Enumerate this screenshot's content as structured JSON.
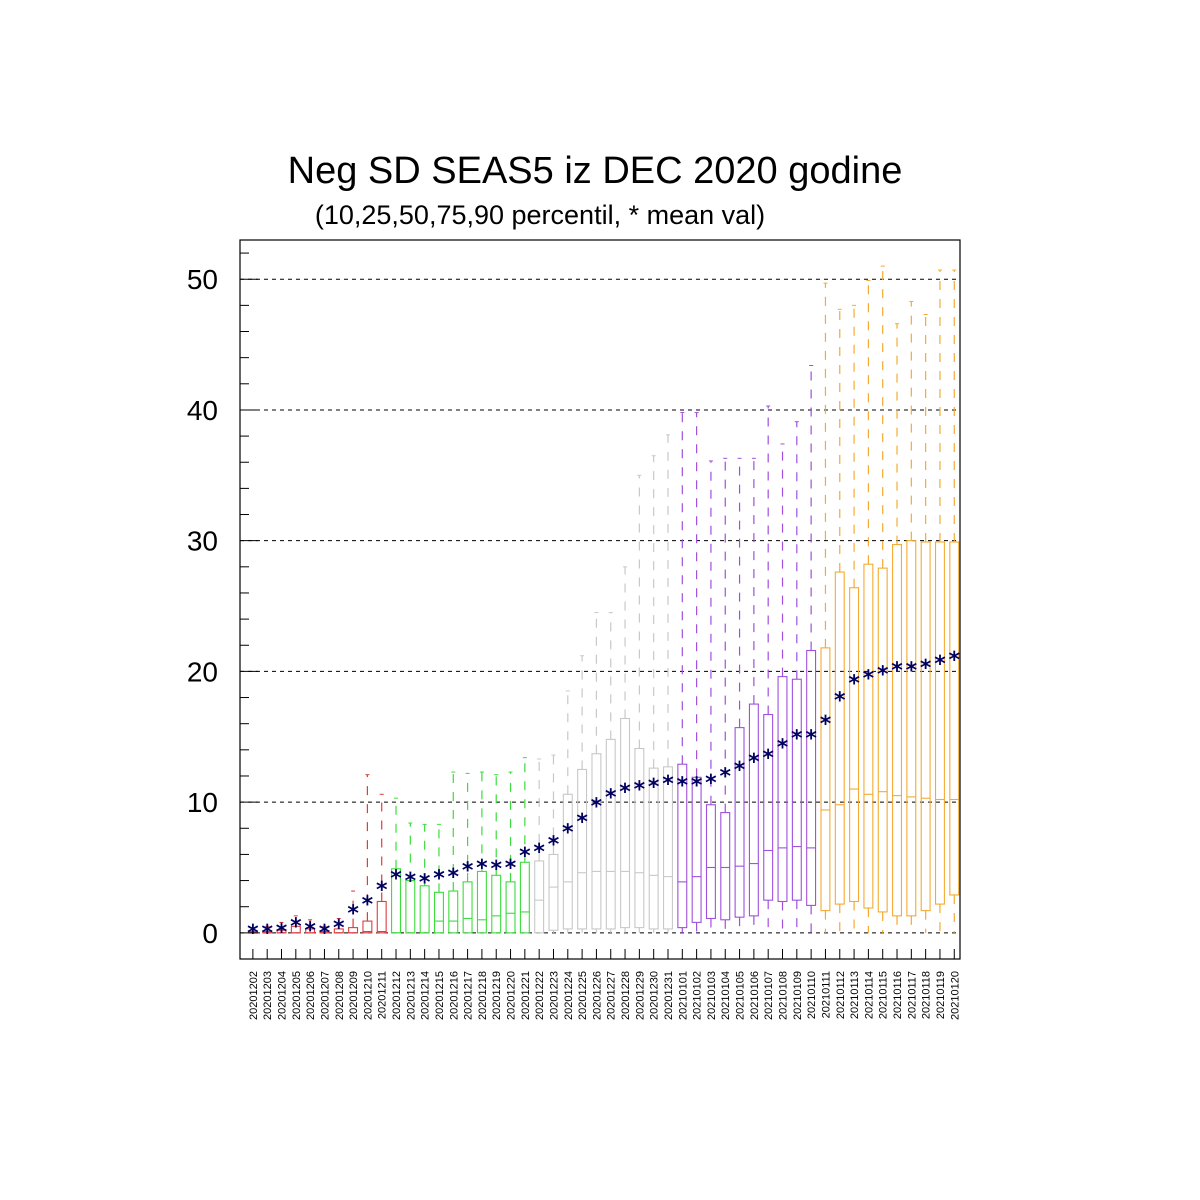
{
  "chart_data": {
    "type": "box",
    "title": "Neg SD SEAS5 iz DEC 2020 godine",
    "subtitle": "(10,25,50,75,90 percentil, * mean val)",
    "ylim": [
      -2,
      53
    ],
    "yticks": [
      0,
      10,
      20,
      30,
      40,
      50
    ],
    "grid": "horizontal dashed at major ticks",
    "categories": [
      "20201202",
      "20201203",
      "20201204",
      "20201205",
      "20201206",
      "20201207",
      "20201208",
      "20201209",
      "20201210",
      "20201211",
      "20201212",
      "20201213",
      "20201214",
      "20201215",
      "20201216",
      "20201217",
      "20201218",
      "20201219",
      "20201220",
      "20201221",
      "20201222",
      "20201223",
      "20201224",
      "20201225",
      "20201226",
      "20201227",
      "20201228",
      "20201229",
      "20201230",
      "20201231",
      "20210101",
      "20210102",
      "20210103",
      "20210104",
      "20210105",
      "20210106",
      "20210107",
      "20210108",
      "20210109",
      "20210110",
      "20210111",
      "20210112",
      "20210113",
      "20210114",
      "20210115",
      "20210116",
      "20210117",
      "20210118",
      "20210119",
      "20210120"
    ],
    "colors": [
      "#e03c3c",
      "#e03c3c",
      "#e03c3c",
      "#e03c3c",
      "#e03c3c",
      "#e03c3c",
      "#e03c3c",
      "#e03c3c",
      "#e03c3c",
      "#e03c3c",
      "#3cdc3c",
      "#3cdc3c",
      "#3cdc3c",
      "#3cdc3c",
      "#3cdc3c",
      "#3cdc3c",
      "#3cdc3c",
      "#3cdc3c",
      "#3cdc3c",
      "#3cdc3c",
      "#c8c8c8",
      "#c8c8c8",
      "#c8c8c8",
      "#c8c8c8",
      "#c8c8c8",
      "#c8c8c8",
      "#c8c8c8",
      "#c8c8c8",
      "#c8c8c8",
      "#c8c8c8",
      "#a050dc",
      "#a050dc",
      "#a050dc",
      "#a050dc",
      "#a050dc",
      "#a050dc",
      "#a050dc",
      "#a050dc",
      "#a050dc",
      "#a050dc",
      "#f5aa32",
      "#f5aa32",
      "#f5aa32",
      "#f5aa32",
      "#f5aa32",
      "#f5aa32",
      "#f5aa32",
      "#f5aa32",
      "#f5aa32",
      "#f5aa32"
    ],
    "mean_color": "#000060",
    "p10": [
      0,
      0,
      0,
      0,
      0,
      0,
      0,
      0,
      0,
      0,
      0,
      0,
      0,
      0,
      0,
      0,
      0,
      0,
      0,
      0,
      0,
      0,
      0,
      0,
      0,
      0,
      0,
      0,
      0,
      0,
      0,
      0,
      0,
      0,
      0,
      0,
      0,
      0,
      0,
      0,
      0,
      0,
      0,
      0,
      0,
      0,
      0,
      0,
      0,
      0
    ],
    "p25": [
      0,
      0,
      0,
      0,
      0,
      0,
      0,
      0,
      0,
      0,
      0,
      0,
      0,
      0,
      0,
      0,
      0,
      0,
      0,
      0,
      0,
      0.2,
      0.3,
      0.3,
      0.3,
      0.3,
      0.4,
      0.4,
      0.3,
      0.3,
      0.4,
      0.8,
      1.1,
      1.0,
      1.2,
      1.3,
      2.5,
      2.4,
      2.5,
      2.1,
      1.7,
      2.2,
      2.4,
      1.9,
      1.6,
      1.3,
      1.3,
      1.7,
      2.2,
      2.9
    ],
    "p50": [
      0,
      0,
      0,
      0,
      0,
      0,
      0,
      0,
      0.1,
      0.1,
      0,
      0,
      0,
      0.9,
      0.9,
      1.1,
      1.0,
      1.3,
      1.5,
      1.6,
      2.5,
      3.5,
      3.9,
      4.6,
      4.7,
      4.7,
      4.7,
      4.6,
      4.4,
      4.3,
      3.9,
      4.3,
      5.0,
      5.0,
      5.1,
      5.3,
      6.3,
      6.5,
      6.6,
      6.5,
      9.4,
      9.8,
      11.0,
      10.6,
      10.8,
      10.5,
      10.4,
      10.3,
      10.2,
      10.2
    ],
    "p75": [
      0.1,
      0.1,
      0.2,
      0.5,
      0.3,
      0.1,
      0.3,
      0.4,
      0.9,
      2.4,
      4.9,
      4.0,
      3.6,
      3.1,
      3.2,
      3.9,
      4.7,
      4.4,
      3.9,
      5.4,
      5.5,
      6.0,
      10.6,
      12.5,
      13.7,
      14.8,
      16.4,
      14.1,
      12.6,
      12.7,
      12.9,
      11.9,
      9.8,
      9.2,
      15.7,
      17.5,
      16.7,
      19.6,
      19.4,
      21.6,
      21.8,
      27.6,
      26.4,
      28.2,
      27.9,
      29.7,
      30.0,
      29.9,
      29.9,
      29.9
    ],
    "p90": [
      0.4,
      0.5,
      0.8,
      1.3,
      1.0,
      0.5,
      1.1,
      3.2,
      12.1,
      10.6,
      10.3,
      8.4,
      8.3,
      8.3,
      12.3,
      12.2,
      12.3,
      12.1,
      12.3,
      13.4,
      13.3,
      13.6,
      18.5,
      21.2,
      24.5,
      24.5,
      28.0,
      35.0,
      36.5,
      38.1,
      39.8,
      39.8,
      36.1,
      36.3,
      36.3,
      36.3,
      40.3,
      37.4,
      39.1,
      43.4,
      49.7,
      47.7,
      48.0,
      49.9,
      51.0,
      46.6,
      48.3,
      47.3,
      50.7,
      50.7
    ],
    "mean": [
      0.2,
      0.2,
      0.3,
      0.7,
      0.4,
      0.2,
      0.6,
      1.7,
      2.4,
      3.5,
      4.4,
      4.2,
      4.1,
      4.4,
      4.5,
      5.0,
      5.2,
      5.1,
      5.2,
      6.1,
      6.4,
      7.0,
      7.9,
      8.7,
      9.9,
      10.6,
      11.0,
      11.2,
      11.4,
      11.6,
      11.5,
      11.5,
      11.7,
      12.2,
      12.7,
      13.3,
      13.6,
      14.4,
      15.1,
      15.1,
      16.2,
      18.0,
      19.3,
      19.7,
      20.0,
      20.3,
      20.3,
      20.5,
      20.8,
      21.1
    ]
  }
}
